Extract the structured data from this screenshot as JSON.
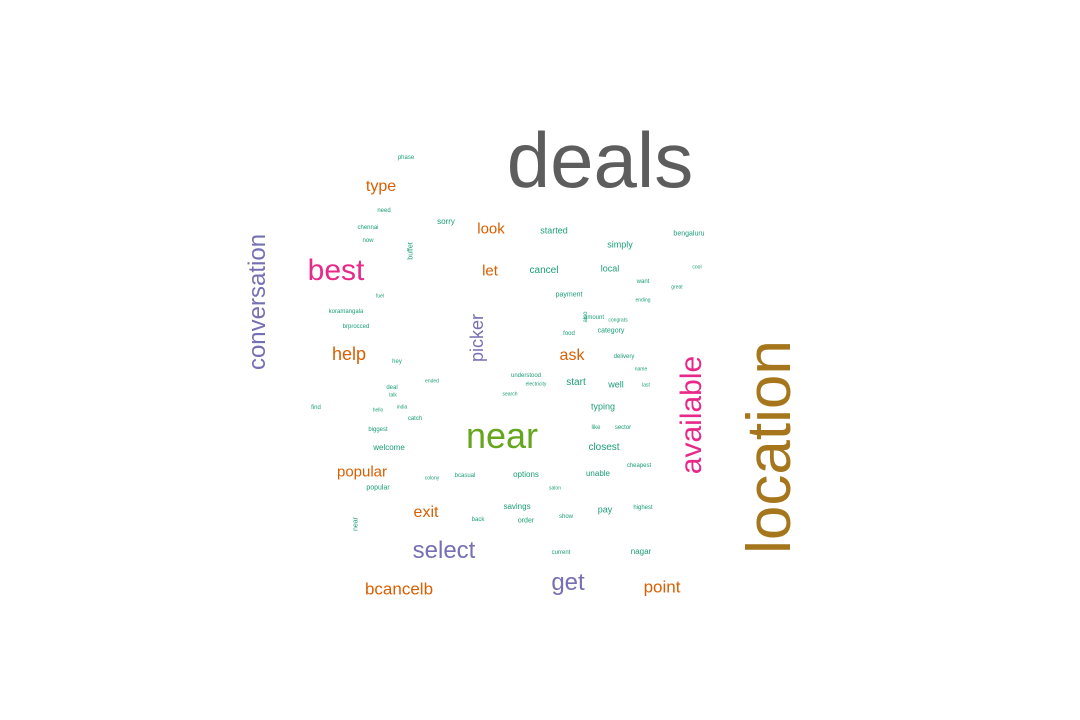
{
  "palette": {
    "gray": "#5d5d5d",
    "gold": "#a6761d",
    "green": "#66a61e",
    "pink": "#e7298a",
    "purple": "#7570b3",
    "orange": "#d95f02",
    "teal": "#1b9e77"
  },
  "words": {
    "major": [
      {
        "text": "deals",
        "color": "gray"
      },
      {
        "text": "location",
        "color": "gold"
      },
      {
        "text": "near",
        "color": "green"
      },
      {
        "text": "available",
        "color": "pink"
      },
      {
        "text": "best",
        "color": "pink"
      },
      {
        "text": "conversation",
        "color": "purple"
      },
      {
        "text": "select",
        "color": "purple"
      },
      {
        "text": "get",
        "color": "purple"
      },
      {
        "text": "picker",
        "color": "purple"
      },
      {
        "text": "help",
        "color": "orange"
      },
      {
        "text": "bcancelb",
        "color": "orange"
      },
      {
        "text": "point",
        "color": "orange"
      },
      {
        "text": "exit",
        "color": "orange"
      },
      {
        "text": "popular",
        "color": "orange"
      },
      {
        "text": "ask",
        "color": "orange"
      },
      {
        "text": "type",
        "color": "orange"
      },
      {
        "text": "look",
        "color": "orange"
      },
      {
        "text": "let",
        "color": "orange"
      }
    ],
    "minor": [
      "cancel",
      "started",
      "simply",
      "local",
      "payment",
      "start",
      "well",
      "typing",
      "closest",
      "unable",
      "options",
      "savings",
      "order",
      "pay",
      "nagar",
      "bengaluru",
      "category",
      "welcome",
      "deal",
      "popular",
      "buffet",
      "sorry",
      "brprocced",
      "koramangala",
      "hey",
      "hello",
      "chennai",
      "now",
      "need",
      "find",
      "catch",
      "biggest",
      "colony",
      "bcasual",
      "show",
      "salon",
      "current",
      "near",
      "highest",
      "cheapest",
      "food",
      "amount",
      "also",
      "name",
      "last",
      "congrats",
      "delivery",
      "sector",
      "like",
      "back",
      "understood",
      "electricity",
      "search",
      "india",
      "talk",
      "ended",
      "want",
      "ending",
      "great",
      "cool",
      "phase",
      "fuel"
    ]
  }
}
